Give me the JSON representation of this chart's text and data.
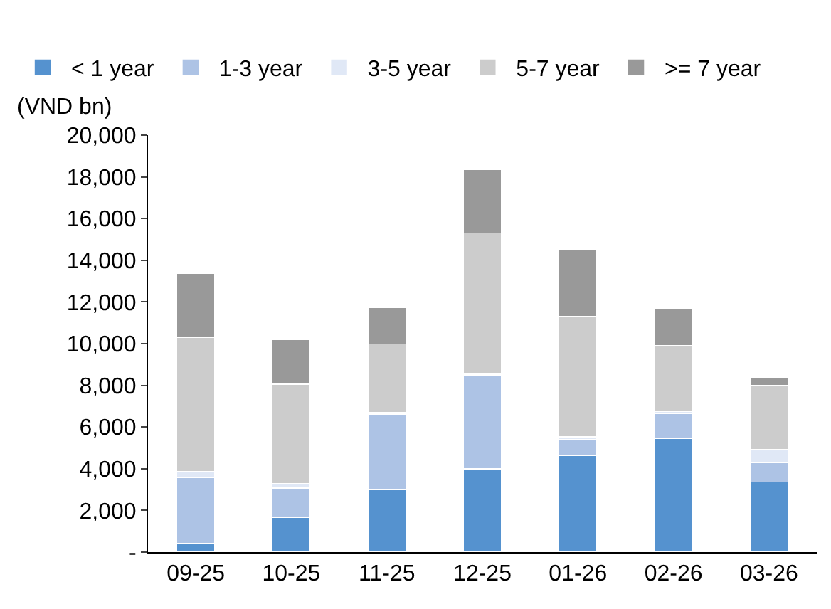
{
  "chart_data": {
    "type": "bar",
    "stacked": true,
    "ylabel": "(VND bn)",
    "categories": [
      "09-25",
      "10-25",
      "11-25",
      "12-25",
      "01-26",
      "02-26",
      "03-26"
    ],
    "series": [
      {
        "name": "< 1 year",
        "color": "#5592cf",
        "values": [
          420,
          1670,
          3010,
          4000,
          4640,
          5460,
          3360
        ]
      },
      {
        "name": "1-3 year",
        "color": "#adc3e5",
        "values": [
          3160,
          1410,
          3620,
          4490,
          770,
          1180,
          920
        ]
      },
      {
        "name": "3-5 year",
        "color": "#e0e8f6",
        "values": [
          280,
          190,
          50,
          70,
          120,
          120,
          640
        ]
      },
      {
        "name": "5-7 year",
        "color": "#cccccc",
        "values": [
          6440,
          4780,
          3300,
          6750,
          5790,
          3130,
          3080
        ]
      },
      {
        "name": ">= 7 year",
        "color": "#999999",
        "values": [
          3060,
          2140,
          1760,
          3040,
          3220,
          1760,
          400
        ]
      }
    ],
    "ylim": [
      0,
      20000
    ],
    "yticks": [
      {
        "value": 0,
        "label": "-"
      },
      {
        "value": 2000,
        "label": "2,000"
      },
      {
        "value": 4000,
        "label": "4,000"
      },
      {
        "value": 6000,
        "label": "6,000"
      },
      {
        "value": 8000,
        "label": "8,000"
      },
      {
        "value": 10000,
        "label": "10,000"
      },
      {
        "value": 12000,
        "label": "12,000"
      },
      {
        "value": 14000,
        "label": "14,000"
      },
      {
        "value": 16000,
        "label": "16,000"
      },
      {
        "value": 18000,
        "label": "18,000"
      },
      {
        "value": 20000,
        "label": "20,000"
      }
    ],
    "legend": "top left"
  }
}
